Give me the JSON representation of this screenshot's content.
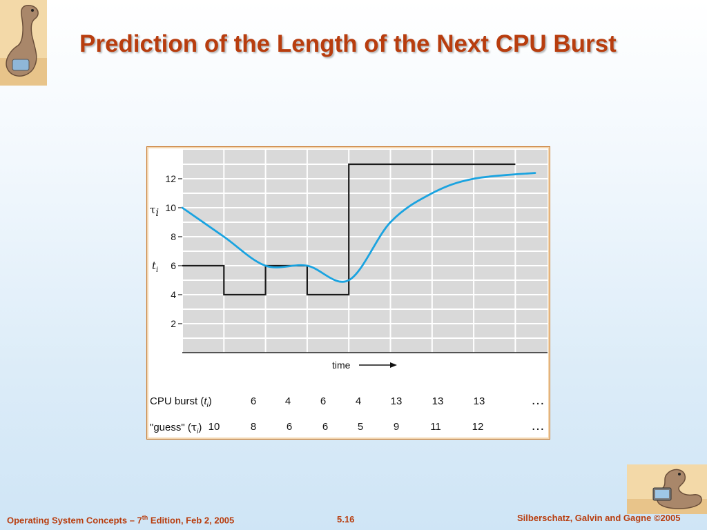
{
  "slide": {
    "title": "Prediction of the Length of the Next CPU Burst"
  },
  "footer": {
    "left_prefix": "Operating System Concepts – 7",
    "left_sup": "th",
    "left_suffix": " Edition, Feb 2, 2005",
    "page": "5.16",
    "right": "Silberschatz, Galvin and Gagne ©2005"
  },
  "chart_data": {
    "type": "line",
    "xlabel": "time",
    "ylabel_tau": "τ",
    "ylabel_t": "t",
    "ylabel_subscript": "i",
    "yticks": [
      2,
      4,
      6,
      8,
      10,
      12
    ],
    "ylim": [
      0,
      14
    ],
    "grid": true,
    "series": [
      {
        "name": "CPU burst (ti)",
        "type": "step",
        "values": [
          6,
          4,
          6,
          4,
          13,
          13,
          13,
          13
        ],
        "color": "#1a1a1a"
      },
      {
        "name": "\"guess\" (τi)",
        "type": "smooth",
        "values": [
          10,
          8,
          6,
          6,
          5,
          9,
          11,
          12
        ],
        "color": "#1aa3e0"
      }
    ],
    "table": {
      "burst_label_prefix": "CPU burst (",
      "burst_label_var": "t",
      "burst_label_sub": "i",
      "burst_label_suffix": ")",
      "guess_label_prefix": "\"guess\" (",
      "guess_label_var": "τ",
      "guess_label_sub": "i",
      "guess_label_suffix": ")",
      "burst_values": [
        "6",
        "4",
        "6",
        "4",
        "13",
        "13",
        "13"
      ],
      "guess_values": [
        "10",
        "8",
        "6",
        "6",
        "5",
        "9",
        "11",
        "12"
      ],
      "ellipsis": "…"
    }
  }
}
